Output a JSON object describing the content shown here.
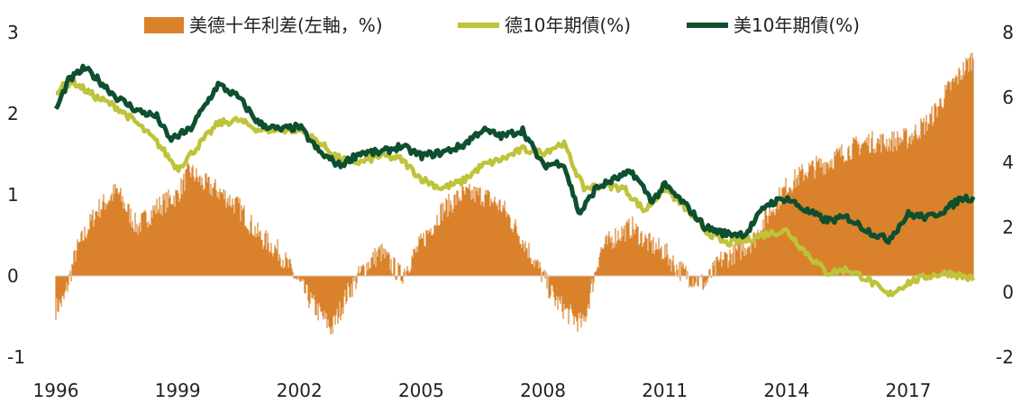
{
  "chart_data": {
    "type": "area",
    "legend": [
      {
        "name": "美德十年利差(左軸，%)",
        "color": "#D9822B",
        "kind": "area"
      },
      {
        "name": "德10年期債(%)",
        "color": "#BFC33A",
        "kind": "line"
      },
      {
        "name": "美10年期債(%)",
        "color": "#0E4F2F",
        "kind": "line"
      }
    ],
    "x_ticks": [
      "1996",
      "1999",
      "2002",
      "2005",
      "2008",
      "2011",
      "2014",
      "2017"
    ],
    "x_range": [
      1996.0,
      2018.6
    ],
    "left_axis": {
      "ticks": [
        "-1",
        "0",
        "1",
        "2",
        "3"
      ],
      "ylim": [
        -1,
        3
      ]
    },
    "right_axis": {
      "ticks": [
        "-2",
        "0",
        "2",
        "4",
        "6",
        "8"
      ],
      "ylim": [
        -2,
        8
      ]
    },
    "grid": false,
    "legend_position": "top",
    "series": [
      {
        "name": "美德十年利差(左軸，%)",
        "axis": "left",
        "x": [
          1996.0,
          1996.2,
          1996.5,
          1997.0,
          1997.5,
          1998.0,
          1998.5,
          1999.0,
          1999.3,
          1999.6,
          2000.0,
          2000.5,
          2001.0,
          2001.5,
          2002.0,
          2002.4,
          2002.8,
          2003.2,
          2003.6,
          2004.0,
          2004.5,
          2005.0,
          2005.5,
          2006.0,
          2006.5,
          2007.0,
          2007.5,
          2008.0,
          2008.3,
          2008.7,
          2009.0,
          2009.4,
          2009.8,
          2010.2,
          2010.6,
          2011.0,
          2011.3,
          2011.6,
          2012.0,
          2012.4,
          2012.8,
          2013.2,
          2013.6,
          2014.0,
          2014.5,
          2015.0,
          2015.5,
          2016.0,
          2016.5,
          2017.0,
          2017.5,
          2018.0,
          2018.3,
          2018.6
        ],
        "values": [
          -0.4,
          -0.3,
          0.3,
          0.8,
          1.05,
          0.6,
          0.85,
          1.0,
          1.3,
          1.15,
          1.05,
          0.85,
          0.5,
          0.3,
          -0.1,
          -0.4,
          -0.65,
          -0.2,
          0.1,
          0.3,
          0.0,
          0.4,
          0.8,
          1.0,
          1.0,
          0.85,
          0.45,
          0.0,
          -0.3,
          -0.5,
          -0.6,
          0.3,
          0.5,
          0.6,
          0.4,
          0.3,
          0.1,
          0.0,
          -0.1,
          0.2,
          0.3,
          0.45,
          0.8,
          1.1,
          1.3,
          1.4,
          1.55,
          1.65,
          1.65,
          1.7,
          1.9,
          2.3,
          2.5,
          2.7
        ]
      },
      {
        "name": "德10年期債(%)",
        "axis": "right",
        "x": [
          1996.0,
          1996.4,
          1997.0,
          1997.5,
          1998.0,
          1998.5,
          1999.0,
          1999.5,
          2000.0,
          2000.5,
          2001.0,
          2001.5,
          2002.0,
          2002.5,
          2003.0,
          2003.5,
          2004.0,
          2004.5,
          2005.0,
          2005.5,
          2006.0,
          2006.5,
          2007.0,
          2007.5,
          2008.0,
          2008.5,
          2009.0,
          2009.5,
          2010.0,
          2010.5,
          2011.0,
          2011.5,
          2012.0,
          2012.5,
          2013.0,
          2013.5,
          2014.0,
          2014.5,
          2015.0,
          2015.5,
          2016.0,
          2016.5,
          2017.0,
          2017.5,
          2018.0,
          2018.6
        ],
        "values": [
          6.2,
          6.5,
          6.0,
          5.7,
          5.2,
          4.6,
          3.8,
          4.5,
          5.2,
          5.3,
          5.0,
          5.0,
          5.0,
          4.6,
          4.1,
          4.0,
          4.2,
          4.1,
          3.5,
          3.2,
          3.4,
          3.9,
          4.1,
          4.4,
          4.3,
          4.6,
          3.2,
          3.3,
          3.2,
          2.5,
          3.2,
          2.6,
          1.9,
          1.5,
          1.6,
          1.8,
          1.9,
          1.2,
          0.6,
          0.7,
          0.4,
          -0.1,
          0.3,
          0.5,
          0.6,
          0.4
        ]
      },
      {
        "name": "美10年期債(%)",
        "axis": "right",
        "x": [
          1996.0,
          1996.3,
          1996.7,
          1997.0,
          1997.5,
          1998.0,
          1998.5,
          1998.8,
          1999.3,
          1999.8,
          2000.0,
          2000.5,
          2001.0,
          2001.5,
          2002.0,
          2002.5,
          2003.0,
          2003.5,
          2004.0,
          2004.5,
          2005.0,
          2005.5,
          2006.0,
          2006.5,
          2007.0,
          2007.5,
          2008.0,
          2008.5,
          2008.9,
          2009.3,
          2009.8,
          2010.2,
          2010.7,
          2011.0,
          2011.5,
          2012.0,
          2012.5,
          2013.0,
          2013.5,
          2014.0,
          2014.5,
          2015.0,
          2015.5,
          2016.0,
          2016.5,
          2017.0,
          2017.5,
          2018.0,
          2018.3,
          2018.6
        ],
        "values": [
          5.6,
          6.5,
          6.9,
          6.6,
          6.0,
          5.6,
          5.4,
          4.7,
          5.0,
          6.0,
          6.4,
          6.0,
          5.2,
          5.0,
          5.1,
          4.3,
          3.9,
          4.3,
          4.3,
          4.5,
          4.2,
          4.3,
          4.5,
          5.0,
          4.8,
          5.0,
          3.9,
          4.0,
          2.4,
          3.2,
          3.5,
          3.7,
          2.8,
          3.3,
          2.7,
          2.0,
          1.8,
          1.8,
          2.7,
          2.9,
          2.5,
          2.2,
          2.3,
          1.9,
          1.6,
          2.4,
          2.3,
          2.6,
          2.9,
          2.9
        ]
      }
    ]
  }
}
